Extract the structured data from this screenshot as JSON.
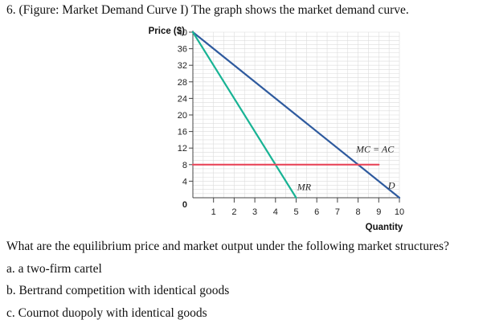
{
  "question": {
    "title": "6. (Figure: Market Demand Curve I) The graph shows the market demand curve.",
    "prompt": "What are the equilibrium price and market output under the following market structures?",
    "parts": [
      "a. a two-firm cartel",
      "b. Bertrand competition with identical goods",
      "c. Cournot duopoly with identical goods"
    ]
  },
  "chart_data": {
    "type": "line",
    "title": "",
    "xlabel": "Quantity",
    "ylabel": "Price ($)",
    "xlim": [
      0,
      10
    ],
    "ylim": [
      0,
      40
    ],
    "x_ticks": [
      "0",
      "1",
      "2",
      "3",
      "4",
      "5",
      "6",
      "7",
      "8",
      "9",
      "10"
    ],
    "y_ticks": [
      "0",
      "4",
      "8",
      "12",
      "16",
      "20",
      "24",
      "28",
      "32",
      "36",
      "40"
    ],
    "grid": true,
    "series": [
      {
        "name": "D",
        "color": "#2e5a9e",
        "points": [
          [
            0,
            40
          ],
          [
            10,
            0
          ]
        ]
      },
      {
        "name": "MR",
        "color": "#18b394",
        "points": [
          [
            0,
            40
          ],
          [
            5,
            0
          ]
        ]
      },
      {
        "name": "MC = AC",
        "color": "#e8475a",
        "points": [
          [
            0,
            8
          ],
          [
            9,
            8
          ]
        ]
      }
    ]
  }
}
